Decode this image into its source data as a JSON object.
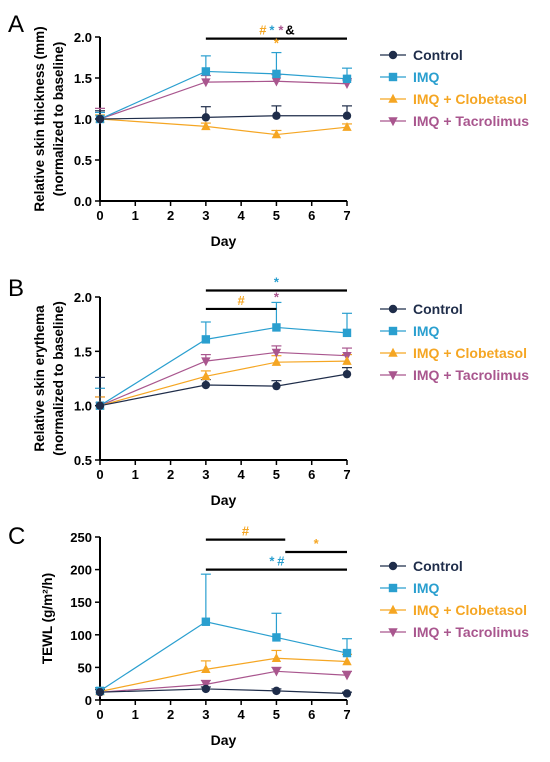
{
  "colors": {
    "control": "#1f2d4a",
    "imq": "#2a9fcf",
    "clobetasol": "#f5a623",
    "tacrolimus": "#a9568e",
    "axis": "#000000"
  },
  "series_style": [
    {
      "key": "control",
      "marker": "circle"
    },
    {
      "key": "imq",
      "marker": "square"
    },
    {
      "key": "clobetasol",
      "marker": "triangle-up"
    },
    {
      "key": "tacrolimus",
      "marker": "triangle-down"
    }
  ],
  "chart_data": [
    {
      "type": "line",
      "panel_label": "A",
      "xlabel": "Day",
      "ylabel": [
        "Relative skin thickness (mm)",
        "(normalized to baseline)"
      ],
      "xlim": [
        0,
        7
      ],
      "ylim": [
        0,
        2.0
      ],
      "xticks": [
        "0",
        "1",
        "2",
        "3",
        "4",
        "5",
        "6",
        "7"
      ],
      "yticks": [
        "0.0",
        "0.5",
        "1.0",
        "1.5",
        "2.0"
      ],
      "ytick_values": [
        0,
        0.5,
        1.0,
        1.5,
        2.0
      ],
      "x": [
        0,
        3,
        5,
        7
      ],
      "legend_position": "right",
      "series": [
        {
          "name": "Control",
          "values": [
            1.0,
            1.02,
            1.04,
            1.04
          ],
          "errors": [
            0.1,
            0.13,
            0.12,
            0.12
          ]
        },
        {
          "name": "IMQ",
          "values": [
            1.0,
            1.58,
            1.55,
            1.49
          ],
          "errors": [
            0.08,
            0.19,
            0.26,
            0.13
          ]
        },
        {
          "name": "IMQ + Clobetasol",
          "values": [
            1.0,
            0.91,
            0.81,
            0.9
          ],
          "errors": [
            0.05,
            0.04,
            0.05,
            0.04
          ]
        },
        {
          "name": "IMQ + Tacrolimus",
          "values": [
            1.0,
            1.45,
            1.46,
            1.43
          ],
          "errors": [
            0.13,
            0.08,
            0.08,
            0.06
          ]
        }
      ],
      "brackets": [
        {
          "x1": 3,
          "x2": 7,
          "y": 1.98,
          "labels": [
            {
              "text": "#",
              "color": "clobetasol"
            },
            {
              "text": "*",
              "color": "imq"
            },
            {
              "text": "*",
              "color": "tacrolimus"
            },
            {
              "text": "&",
              "color": "axis"
            }
          ]
        }
      ],
      "point_marks": [
        {
          "x": 5,
          "y": 1.87,
          "text": "*",
          "color": "clobetasol"
        }
      ]
    },
    {
      "type": "line",
      "panel_label": "B",
      "xlabel": "Day",
      "ylabel": [
        "Relative skin erythema",
        "(normalized to baseline)"
      ],
      "xlim": [
        0,
        7
      ],
      "ylim": [
        0.5,
        2.0
      ],
      "xticks": [
        "0",
        "1",
        "2",
        "3",
        "4",
        "5",
        "6",
        "7"
      ],
      "yticks": [
        "0.5",
        "1.0",
        "1.5",
        "2.0"
      ],
      "ytick_values": [
        0.5,
        1.0,
        1.5,
        2.0
      ],
      "x": [
        0,
        3,
        5,
        7
      ],
      "legend_position": "right",
      "series": [
        {
          "name": "Control",
          "values": [
            1.0,
            1.19,
            1.18,
            1.29
          ],
          "errors": [
            0.26,
            0.05,
            0.05,
            0.06
          ]
        },
        {
          "name": "IMQ",
          "values": [
            1.0,
            1.61,
            1.72,
            1.67
          ],
          "errors": [
            0.16,
            0.16,
            0.23,
            0.18
          ]
        },
        {
          "name": "IMQ + Clobetasol",
          "values": [
            1.0,
            1.27,
            1.4,
            1.41
          ],
          "errors": [
            0.08,
            0.05,
            0.06,
            0.06
          ]
        },
        {
          "name": "IMQ + Tacrolimus",
          "values": [
            1.0,
            1.41,
            1.49,
            1.46
          ],
          "errors": [
            0.08,
            0.06,
            0.06,
            0.07
          ]
        }
      ],
      "brackets": [
        {
          "x1": 3,
          "x2": 7,
          "y": 2.06,
          "labels": [
            {
              "text": "*",
              "color": "imq"
            }
          ]
        },
        {
          "x1": 3,
          "x2": 5,
          "y": 1.89,
          "labels": [
            {
              "text": "#",
              "color": "clobetasol"
            }
          ]
        }
      ],
      "point_marks": [
        {
          "x": 5,
          "y": 1.96,
          "text": "*",
          "color": "tacrolimus"
        }
      ]
    },
    {
      "type": "line",
      "panel_label": "C",
      "xlabel": "Day",
      "ylabel": [
        "TEWL (g/m²/h)"
      ],
      "xlim": [
        0,
        7
      ],
      "ylim": [
        0,
        250
      ],
      "xticks": [
        "0",
        "1",
        "2",
        "3",
        "4",
        "5",
        "6",
        "7"
      ],
      "yticks": [
        "0",
        "50",
        "100",
        "150",
        "200",
        "250"
      ],
      "ytick_values": [
        0,
        50,
        100,
        150,
        200,
        250
      ],
      "x": [
        0,
        3,
        5,
        7
      ],
      "legend_position": "right",
      "series": [
        {
          "name": "Control",
          "values": [
            12,
            17,
            14,
            10
          ],
          "errors": [
            4,
            3,
            3,
            2
          ]
        },
        {
          "name": "IMQ",
          "values": [
            14,
            120,
            96,
            72
          ],
          "errors": [
            5,
            73,
            37,
            22
          ]
        },
        {
          "name": "IMQ + Clobetasol",
          "values": [
            13,
            47,
            64,
            59
          ],
          "errors": [
            4,
            13,
            12,
            11
          ]
        },
        {
          "name": "IMQ + Tacrolimus",
          "values": [
            12,
            24,
            44,
            38
          ],
          "errors": [
            4,
            6,
            6,
            6
          ]
        }
      ],
      "brackets": [
        {
          "x1": 3,
          "x2": 5.25,
          "y": 246,
          "labels": [
            {
              "text": "#",
              "color": "clobetasol"
            }
          ]
        },
        {
          "x1": 5.25,
          "x2": 7,
          "y": 227,
          "labels": [
            {
              "text": "*",
              "color": "clobetasol"
            }
          ]
        },
        {
          "x1": 3,
          "x2": 7,
          "y": 200,
          "labels": [
            {
              "text": "*",
              "color": "imq"
            },
            {
              "text": "#",
              "color": "imq"
            }
          ]
        }
      ],
      "point_marks": []
    }
  ]
}
